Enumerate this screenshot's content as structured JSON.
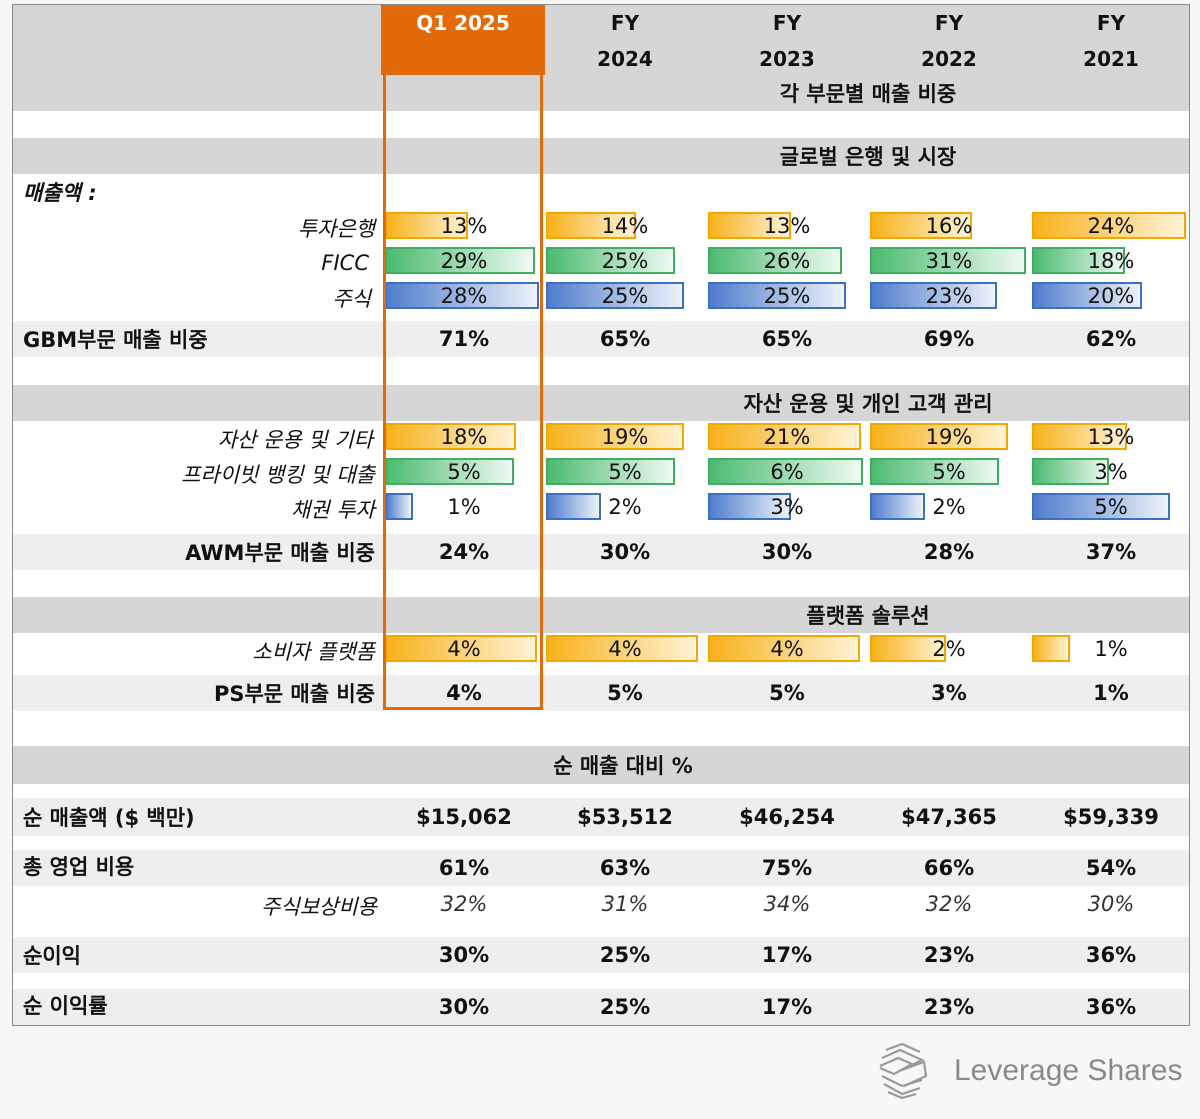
{
  "header": {
    "columns": [
      {
        "line1": "Q1 2025",
        "line2": ""
      },
      {
        "line1": "FY",
        "line2": "2024"
      },
      {
        "line1": "FY",
        "line2": "2023"
      },
      {
        "line1": "FY",
        "line2": "2022"
      },
      {
        "line1": "FY",
        "line2": "2021"
      }
    ]
  },
  "sections": {
    "segment_share": "각 부문별 매출 비중",
    "gbm": "글로벌 은행 및 시장",
    "awm": "자산 운용 및 개인 고객 관리",
    "ps": "플랫폼 솔루션",
    "net_revenue_pct": "순 매출 대비 %"
  },
  "revenue_label": "매출액 :",
  "rows": {
    "ib": {
      "label": "투자은행",
      "values": [
        "13%",
        "14%",
        "13%",
        "16%",
        "24%"
      ],
      "fractions": [
        0.13,
        0.14,
        0.13,
        0.16,
        0.24
      ]
    },
    "ficc": {
      "label": "FICC",
      "values": [
        "29%",
        "25%",
        "26%",
        "31%",
        "18%"
      ],
      "fractions": [
        0.29,
        0.25,
        0.26,
        0.31,
        0.18
      ]
    },
    "equity": {
      "label": "주식",
      "values": [
        "28%",
        "25%",
        "25%",
        "23%",
        "20%"
      ],
      "fractions": [
        0.28,
        0.25,
        0.25,
        0.23,
        0.2
      ]
    },
    "gbm_total": {
      "label": "GBM부문 매출 비중",
      "values": [
        "71%",
        "65%",
        "65%",
        "69%",
        "62%"
      ]
    },
    "am": {
      "label": "자산 운용 및 기타",
      "values": [
        "18%",
        "19%",
        "21%",
        "19%",
        "13%"
      ],
      "fractions": [
        0.18,
        0.19,
        0.21,
        0.19,
        0.13
      ]
    },
    "pb": {
      "label": "프라이빗 뱅킹 및 대출",
      "values": [
        "5%",
        "5%",
        "6%",
        "5%",
        "3%"
      ],
      "fractions": [
        0.05,
        0.05,
        0.06,
        0.05,
        0.03
      ]
    },
    "debt": {
      "label": "채권 투자",
      "values": [
        "1%",
        "2%",
        "3%",
        "2%",
        "5%"
      ],
      "fractions": [
        0.01,
        0.02,
        0.03,
        0.02,
        0.05
      ]
    },
    "awm_total": {
      "label": "AWM부문 매출 비중",
      "values": [
        "24%",
        "30%",
        "30%",
        "28%",
        "37%"
      ]
    },
    "consumer": {
      "label": "소비자 플랫폼",
      "values": [
        "4%",
        "4%",
        "4%",
        "2%",
        "1%"
      ],
      "fractions": [
        0.04,
        0.04,
        0.04,
        0.02,
        0.01
      ]
    },
    "ps_total": {
      "label": "PS부문 매출 비중",
      "values": [
        "4%",
        "5%",
        "5%",
        "3%",
        "1%"
      ]
    },
    "net_revenue": {
      "label": "순 매출액 ($ 백만)",
      "values": [
        "$15,062",
        "$53,512",
        "$46,254",
        "$47,365",
        "$59,339"
      ]
    },
    "opex": {
      "label": "총 영업 비용",
      "values": [
        "61%",
        "63%",
        "75%",
        "66%",
        "54%"
      ]
    },
    "sbc": {
      "label": "주식보상비용",
      "values": [
        "32%",
        "31%",
        "34%",
        "32%",
        "30%"
      ]
    },
    "net_income": {
      "label": "순이익",
      "values": [
        "30%",
        "25%",
        "17%",
        "23%",
        "36%"
      ]
    },
    "net_margin": {
      "label": "순 이익률",
      "values": [
        "30%",
        "25%",
        "17%",
        "23%",
        "36%"
      ]
    }
  },
  "colors": {
    "highlight": "#e26a0a",
    "orange": "#f4a700",
    "green": "#3fae63",
    "blue": "#3d6fc3"
  },
  "logo": {
    "text": "Leverage Shares",
    "icon": "leverage-shares-logo-icon"
  }
}
